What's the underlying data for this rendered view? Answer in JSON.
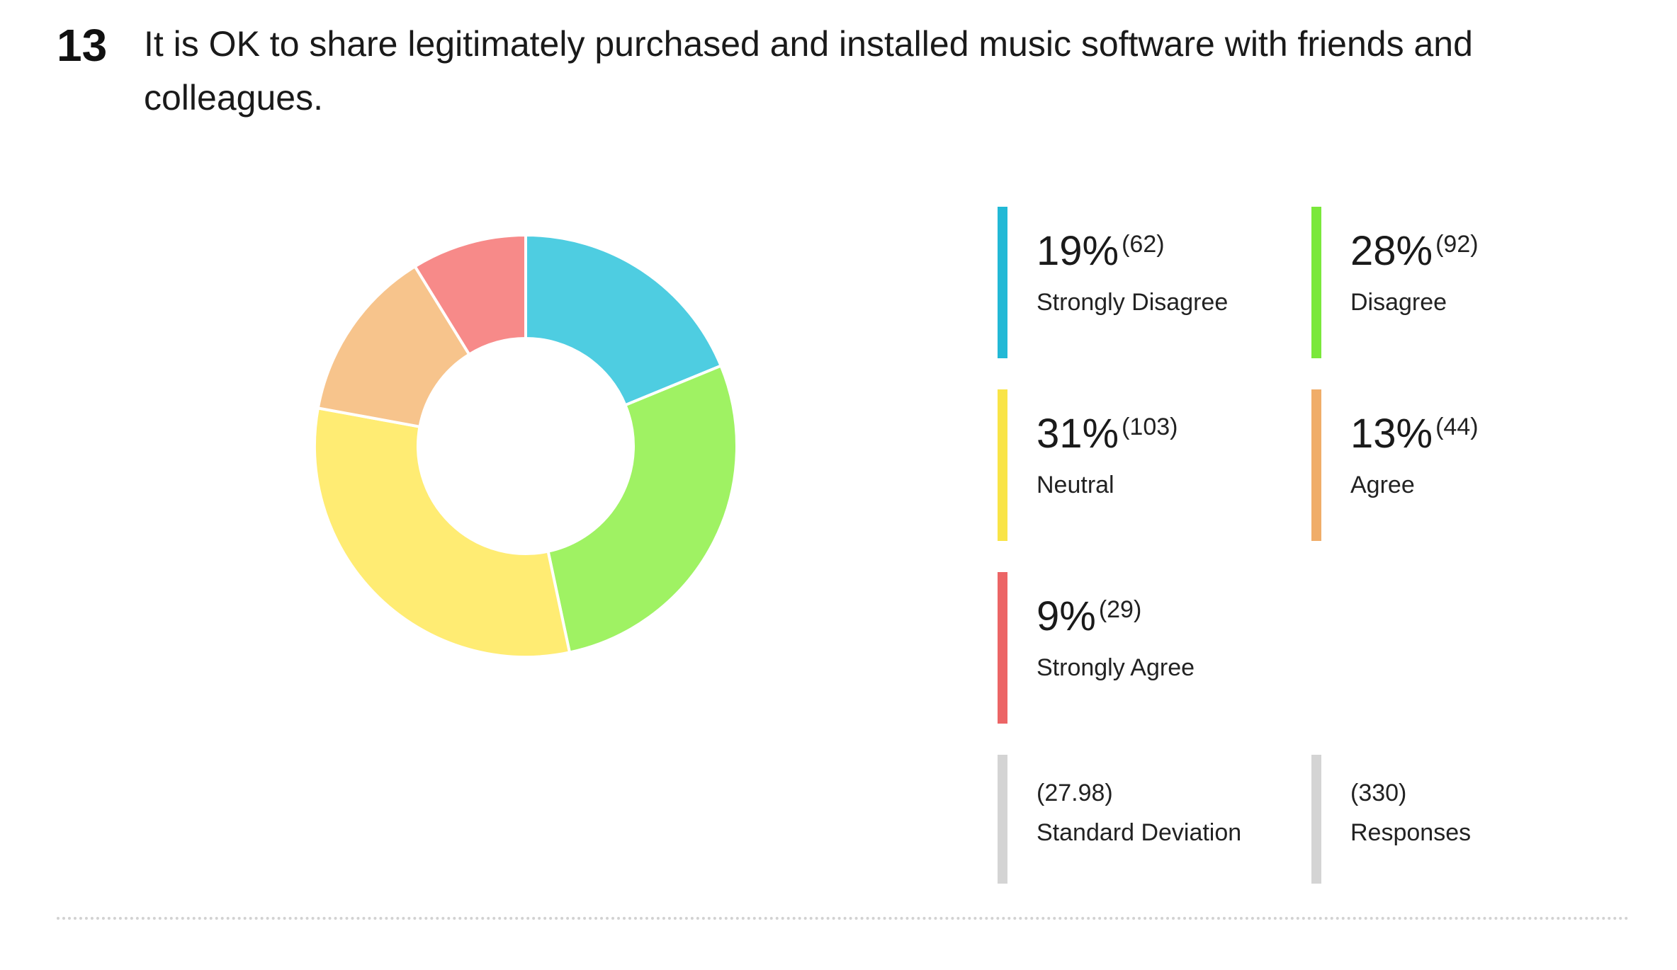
{
  "question": {
    "number": "13",
    "text": "It is OK to share legitimately purchased and installed music software with friends and colleagues."
  },
  "chart_data": {
    "type": "pie",
    "style": "donut",
    "categories": [
      "Strongly Disagree",
      "Disagree",
      "Neutral",
      "Agree",
      "Strongly Agree"
    ],
    "values": [
      62,
      92,
      103,
      44,
      29
    ],
    "percentages": [
      "19%",
      "28%",
      "31%",
      "13%",
      "9%"
    ],
    "counts": [
      "(62)",
      "(92)",
      "(103)",
      "(44)",
      "(29)"
    ],
    "colors": [
      "#4ecde1",
      "#9ff263",
      "#ffec73",
      "#f7c48c",
      "#f78a89"
    ],
    "legend_bar_colors": [
      "#22b9d6",
      "#7ae83b",
      "#f9e447",
      "#f0ad69",
      "#ec6566"
    ],
    "legend_position": "right"
  },
  "legend": {
    "items": [
      {
        "pct": "19%",
        "count": "(62)",
        "label": "Strongly Disagree"
      },
      {
        "pct": "28%",
        "count": "(92)",
        "label": "Disagree"
      },
      {
        "pct": "31%",
        "count": "(103)",
        "label": "Neutral"
      },
      {
        "pct": "13%",
        "count": "(44)",
        "label": "Agree"
      },
      {
        "pct": "9%",
        "count": "(29)",
        "label": "Strongly Agree"
      }
    ]
  },
  "stats": {
    "std_dev_value": "(27.98)",
    "std_dev_label": "Standard Deviation",
    "responses_value": "(330)",
    "responses_label": "Responses"
  }
}
